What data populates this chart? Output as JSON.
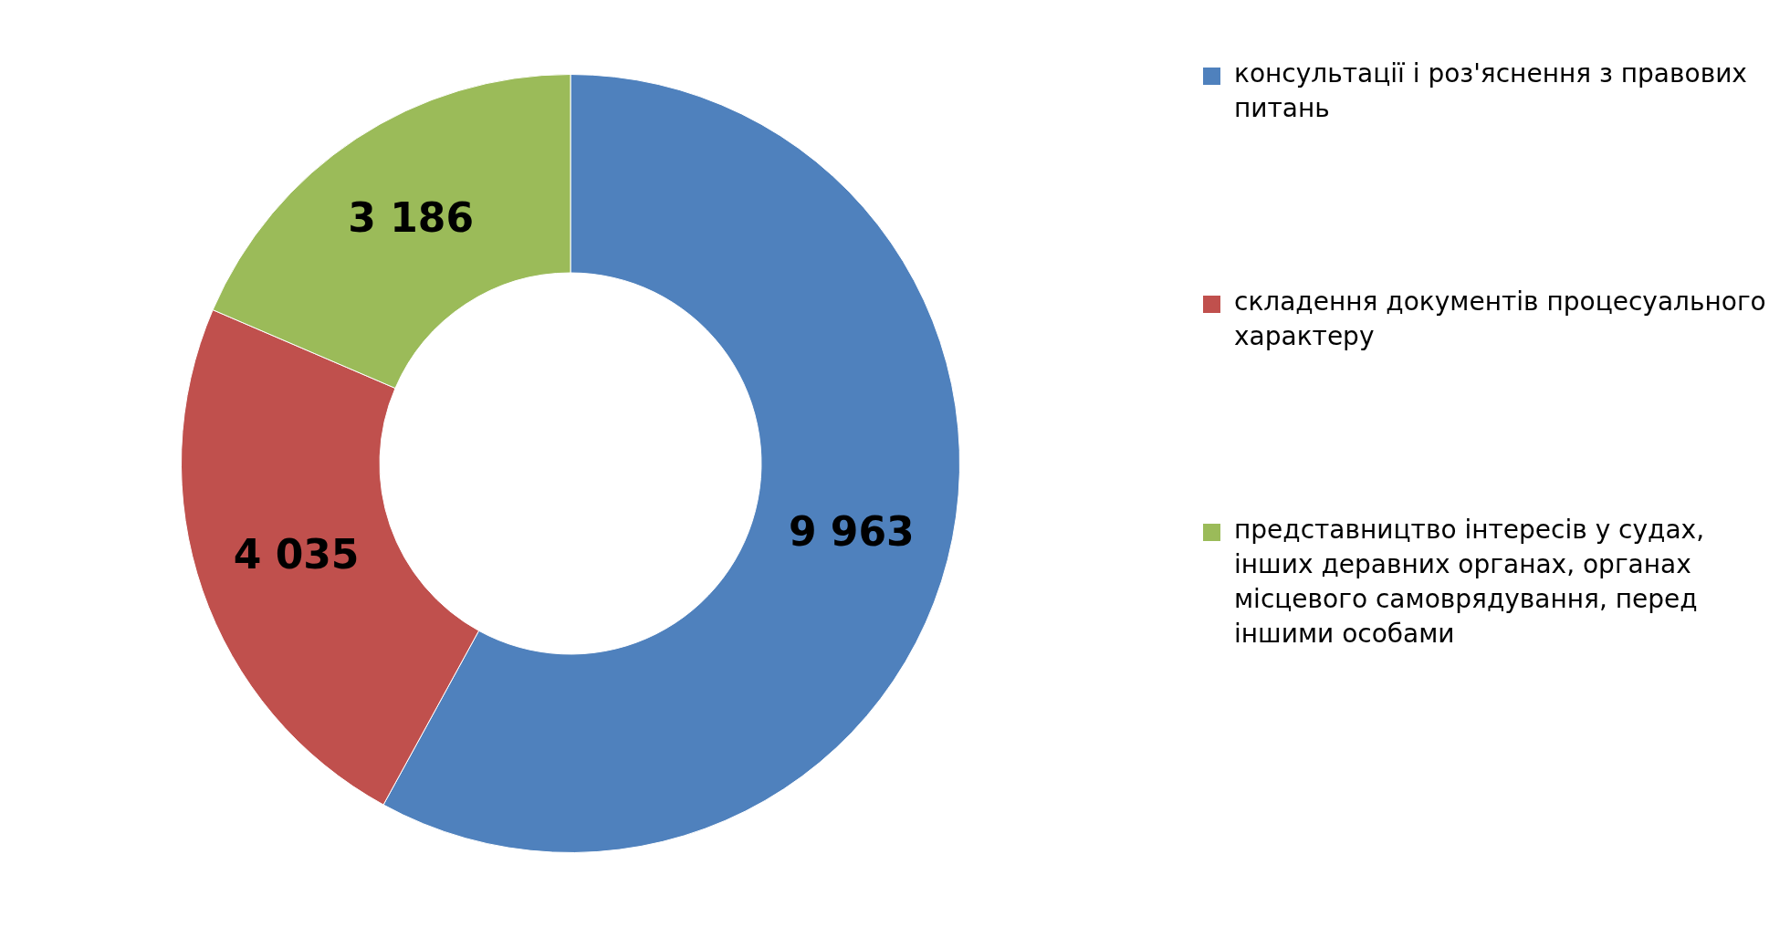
{
  "chart_data": {
    "type": "donut",
    "categories": [
      "консультації і роз'яснення з правових питань",
      "складення документів процесуального характеру",
      "представництво інтересів у судах, інших деравних органах, органах місцевого самоврядування, перед іншими особами"
    ],
    "values": [
      9963,
      4035,
      3186
    ],
    "colors": [
      "#4f81bd",
      "#c0504d",
      "#9bbb59"
    ],
    "value_labels": [
      "9 963",
      "4 035",
      "3 186"
    ],
    "legend": "right"
  }
}
